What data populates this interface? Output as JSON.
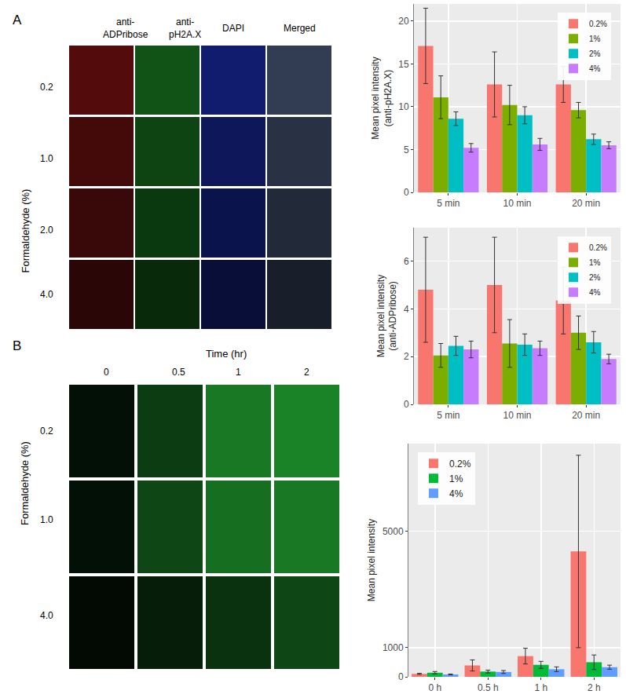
{
  "chart_data": [
    {
      "type": "bar",
      "y_label": [
        "Mean pixel intensity",
        "(anti-pH2A.X)"
      ],
      "categories": [
        "5 min",
        "10 min",
        "20 min"
      ],
      "series": [
        {
          "name": "0.2%",
          "color": "#F8766D",
          "values": [
            17.1,
            12.6,
            12.6
          ],
          "errors": [
            4.4,
            3.8,
            2.1
          ]
        },
        {
          "name": "1%",
          "color": "#7CAE00",
          "values": [
            11.1,
            10.2,
            9.6
          ],
          "errors": [
            2.5,
            2.3,
            0.9
          ]
        },
        {
          "name": "2%",
          "color": "#00BFC4",
          "values": [
            8.6,
            9.0,
            6.2
          ],
          "errors": [
            0.8,
            1.0,
            0.6
          ]
        },
        {
          "name": "4%",
          "color": "#C77CFF",
          "values": [
            5.2,
            5.6,
            5.5
          ],
          "errors": [
            0.5,
            0.7,
            0.4
          ]
        }
      ],
      "ylim": [
        0,
        22
      ],
      "yticks": [
        0,
        5,
        10,
        15,
        20
      ],
      "grid": true,
      "legend": "top right"
    },
    {
      "type": "bar",
      "y_label": [
        "Mean pixel intensity",
        "(anti-ADPribose)"
      ],
      "categories": [
        "5 min",
        "10 min",
        "20 min"
      ],
      "series": [
        {
          "name": "0.2%",
          "color": "#F8766D",
          "values": [
            4.8,
            5.0,
            4.35
          ],
          "errors": [
            2.2,
            2.0,
            1.4
          ]
        },
        {
          "name": "1%",
          "color": "#7CAE00",
          "values": [
            2.05,
            2.55,
            3.0
          ],
          "errors": [
            0.5,
            1.0,
            0.7
          ]
        },
        {
          "name": "2%",
          "color": "#00BFC4",
          "values": [
            2.45,
            2.5,
            2.6
          ],
          "errors": [
            0.4,
            0.45,
            0.45
          ]
        },
        {
          "name": "4%",
          "color": "#C77CFF",
          "values": [
            2.3,
            2.35,
            1.9
          ],
          "errors": [
            0.35,
            0.3,
            0.2
          ]
        }
      ],
      "ylim": [
        0,
        7.4
      ],
      "yticks": [
        0,
        2,
        4,
        6
      ],
      "grid": true,
      "legend": "top right"
    },
    {
      "type": "bar",
      "y_label": [
        "Mean pixel intensity"
      ],
      "categories": [
        "0 h",
        "0.5 h",
        "1 h",
        "2 h"
      ],
      "series": [
        {
          "name": "0.2%",
          "color": "#F8766D",
          "values": [
            100,
            390,
            710,
            4300
          ],
          "errors": [
            20,
            190,
            270,
            3300
          ]
        },
        {
          "name": "1%",
          "color": "#00BA38",
          "values": [
            140,
            180,
            410,
            500
          ],
          "errors": [
            40,
            50,
            120,
            250
          ]
        },
        {
          "name": "4%",
          "color": "#619CFF",
          "values": [
            80,
            165,
            260,
            330
          ],
          "errors": [
            15,
            50,
            80,
            70
          ]
        }
      ],
      "ylim": [
        0,
        8000
      ],
      "yticks": [
        0,
        1000,
        5000
      ],
      "grid": true,
      "legend": "top left"
    }
  ],
  "image_panels": {
    "A": {
      "label": "A",
      "columns": [
        [
          "anti-",
          "ADPribose"
        ],
        [
          "anti-",
          "pH2A.X"
        ],
        [
          "DAPI"
        ],
        [
          "Merged"
        ]
      ],
      "rows": [
        "0.2",
        "1.0",
        "2.0",
        "4.0"
      ],
      "row_title": "Formaldehyde (%)"
    },
    "B": {
      "label": "B",
      "column_title": "Time (hr)",
      "columns": [
        [
          "0"
        ],
        [
          "0.5"
        ],
        [
          "1"
        ],
        [
          "2"
        ]
      ],
      "rows": [
        "0.2",
        "1.0",
        "4.0"
      ],
      "row_title": "Formaldehyde (%)"
    }
  }
}
